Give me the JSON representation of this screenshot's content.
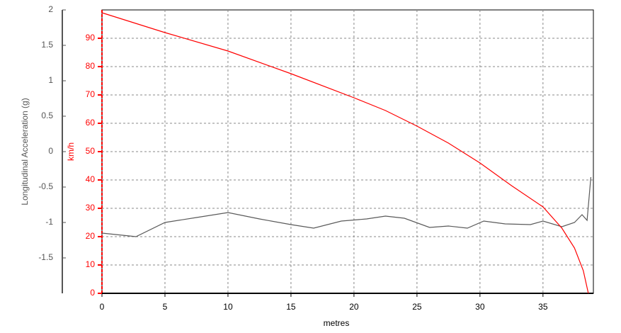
{
  "chart_data": {
    "type": "line",
    "x_label": "metres",
    "y_label": "Longitudinal Acceleration (g)",
    "y2_label": "km/h",
    "xlim": [
      0,
      39
    ],
    "xticks": [
      0,
      5,
      10,
      15,
      20,
      25,
      30,
      35
    ],
    "ylim": [
      -2,
      2
    ],
    "yticks": [
      -1.5,
      -1,
      -0.5,
      0,
      0.5,
      1,
      1.5,
      2
    ],
    "y2lim": [
      0,
      100
    ],
    "y2ticks": [
      0,
      10,
      20,
      30,
      40,
      50,
      60,
      70,
      80,
      90
    ],
    "grid": true,
    "series": [
      {
        "color": "#5a5a5a",
        "axis": "y",
        "x": [
          0,
          2.7,
          5,
          7.5,
          10,
          12.5,
          15,
          16.8,
          19,
          21,
          22.5,
          24,
          26,
          27.5,
          29,
          30.3,
          32,
          34,
          35,
          36.5,
          37.5,
          38.1,
          38.5,
          38.8
        ],
        "values": [
          -1.15,
          -1.2,
          -1.0,
          -0.93,
          -0.86,
          -0.95,
          -1.03,
          -1.08,
          -0.98,
          -0.95,
          -0.91,
          -0.94,
          -1.07,
          -1.05,
          -1.08,
          -0.98,
          -1.02,
          -1.03,
          -0.98,
          -1.06,
          -1.0,
          -0.89,
          -0.97,
          -0.36
        ]
      },
      {
        "color": "#ff0000",
        "axis": "y2",
        "x": [
          0,
          5,
          10,
          15,
          20,
          22.5,
          25,
          27.5,
          30,
          32.5,
          35,
          36.5,
          37.5,
          38.2,
          38.6
        ],
        "values": [
          99,
          92,
          85.5,
          77.5,
          69,
          64.5,
          59,
          53,
          46,
          38,
          30.5,
          23,
          16,
          8,
          0
        ]
      }
    ]
  }
}
